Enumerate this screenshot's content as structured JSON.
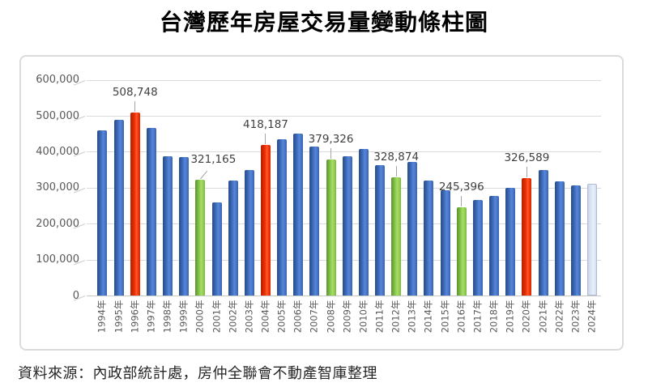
{
  "page": {
    "title": "台灣歷年房屋交易量變動條柱圖",
    "source": "資料來源：內政部統計處，房仲全聯會不動產智庫整理"
  },
  "chart_data": {
    "type": "bar",
    "title": "台灣歷年房屋交易量變動條柱圖",
    "xlabel": "",
    "ylabel": "",
    "ylim": [
      0,
      600000
    ],
    "ytick_interval": 100000,
    "ytick_labels": [
      "0",
      "100,000",
      "200,000",
      "300,000",
      "400,000",
      "500,000",
      "600,000"
    ],
    "grid": true,
    "legend_position": "none",
    "x_tick_rotation": 90,
    "bars": [
      {
        "year": "1994年",
        "value": 458434,
        "color": "blue"
      },
      {
        "year": "1995年",
        "value": 487928,
        "color": "blue"
      },
      {
        "year": "1996年",
        "value": 508748,
        "color": "red",
        "label": "508,748"
      },
      {
        "year": "1997年",
        "value": 466931,
        "color": "blue"
      },
      {
        "year": "1998年",
        "value": 386522,
        "color": "blue"
      },
      {
        "year": "1999年",
        "value": 385074,
        "color": "blue"
      },
      {
        "year": "2000年",
        "value": 321165,
        "color": "green",
        "label": "321,165",
        "label_dx": 16
      },
      {
        "year": "2001年",
        "value": 259494,
        "color": "blue"
      },
      {
        "year": "2002年",
        "value": 320285,
        "color": "blue"
      },
      {
        "year": "2003年",
        "value": 349706,
        "color": "blue"
      },
      {
        "year": "2004年",
        "value": 418187,
        "color": "red",
        "label": "418,187"
      },
      {
        "year": "2005年",
        "value": 434888,
        "color": "blue"
      },
      {
        "year": "2006年",
        "value": 450167,
        "color": "blue"
      },
      {
        "year": "2007年",
        "value": 414641,
        "color": "blue"
      },
      {
        "year": "2008年",
        "value": 379326,
        "color": "green",
        "label": "379,326"
      },
      {
        "year": "2009年",
        "value": 388298,
        "color": "blue"
      },
      {
        "year": "2010年",
        "value": 406689,
        "color": "blue"
      },
      {
        "year": "2011年",
        "value": 361704,
        "color": "blue"
      },
      {
        "year": "2012年",
        "value": 328874,
        "color": "green",
        "label": "328,874"
      },
      {
        "year": "2013年",
        "value": 371892,
        "color": "blue"
      },
      {
        "year": "2014年",
        "value": 320598,
        "color": "blue"
      },
      {
        "year": "2015年",
        "value": 292550,
        "color": "blue"
      },
      {
        "year": "2016年",
        "value": 245396,
        "color": "green",
        "label": "245,396"
      },
      {
        "year": "2017年",
        "value": 266086,
        "color": "blue"
      },
      {
        "year": "2018年",
        "value": 277967,
        "color": "blue"
      },
      {
        "year": "2019年",
        "value": 300275,
        "color": "blue"
      },
      {
        "year": "2020年",
        "value": 326589,
        "color": "red",
        "label": "326,589"
      },
      {
        "year": "2021年",
        "value": 348194,
        "color": "blue"
      },
      {
        "year": "2022年",
        "value": 318101,
        "color": "blue"
      },
      {
        "year": "2023年",
        "value": 306971,
        "color": "blue"
      },
      {
        "year": "2024年",
        "value": 310000,
        "color": "pale"
      }
    ],
    "colors": {
      "bar_blue": "#4472C4",
      "bar_red": "#F03006",
      "bar_green": "#92D050",
      "bar_pale": "#DCE5F4",
      "gridline": "#DADADA",
      "axis_line": "#C6C6C6",
      "axis_text": "#595959",
      "data_label_text": "#3F3F3F",
      "leader_line": "#A6A6A6",
      "box_border": "#DBDBDB"
    }
  }
}
